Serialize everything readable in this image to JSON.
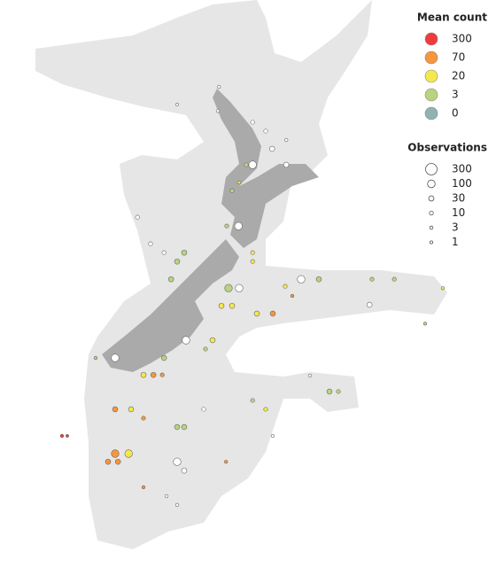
{
  "map": {
    "legend_color": {
      "title": "Mean count",
      "items": [
        {
          "value": 300,
          "color": "#f03b3b"
        },
        {
          "value": 70,
          "color": "#f7963c"
        },
        {
          "value": 20,
          "color": "#f5e84b"
        },
        {
          "value": 3,
          "color": "#b8d47e"
        },
        {
          "value": 0,
          "color": "#8fb3b3"
        }
      ]
    },
    "legend_size": {
      "title": "Observations",
      "items": [
        300,
        100,
        30,
        10,
        3,
        1
      ]
    },
    "points": [
      {
        "lon": 171.18,
        "lat": -36.45,
        "mean": 0,
        "obs": 3
      },
      {
        "lon": 170.0,
        "lat": -36.95,
        "mean": 0,
        "obs": 1
      },
      {
        "lon": 171.15,
        "lat": -37.13,
        "mean": 0,
        "obs": 3
      },
      {
        "lon": 172.13,
        "lat": -37.45,
        "mean": 0,
        "obs": 10
      },
      {
        "lon": 172.5,
        "lat": -37.7,
        "mean": 0,
        "obs": 10
      },
      {
        "lon": 173.08,
        "lat": -37.95,
        "mean": 0,
        "obs": 3
      },
      {
        "lon": 172.68,
        "lat": -38.2,
        "mean": 0,
        "obs": 30
      },
      {
        "lon": 172.13,
        "lat": -38.65,
        "mean": 0,
        "obs": 100
      },
      {
        "lon": 173.08,
        "lat": -38.65,
        "mean": 0,
        "obs": 30
      },
      {
        "lon": 171.95,
        "lat": -38.65,
        "mean": 3,
        "obs": 10
      },
      {
        "lon": 171.55,
        "lat": -39.38,
        "mean": 3,
        "obs": 10
      },
      {
        "lon": 171.75,
        "lat": -39.15,
        "mean": 20,
        "obs": 3
      },
      {
        "lon": 171.73,
        "lat": -40.38,
        "mean": 0,
        "obs": 100
      },
      {
        "lon": 171.4,
        "lat": -40.38,
        "mean": 3,
        "obs": 10
      },
      {
        "lon": 170.2,
        "lat": -41.13,
        "mean": 3,
        "obs": 30
      },
      {
        "lon": 170.0,
        "lat": -41.38,
        "mean": 3,
        "obs": 30
      },
      {
        "lon": 169.83,
        "lat": -41.88,
        "mean": 3,
        "obs": 30
      },
      {
        "lon": 169.63,
        "lat": -41.13,
        "mean": 0,
        "obs": 10
      },
      {
        "lon": 169.25,
        "lat": -40.88,
        "mean": 0,
        "obs": 10
      },
      {
        "lon": 168.88,
        "lat": -40.13,
        "mean": 0,
        "obs": 10
      },
      {
        "lon": 172.13,
        "lat": -41.13,
        "mean": 20,
        "obs": 10
      },
      {
        "lon": 172.13,
        "lat": -41.38,
        "mean": 20,
        "obs": 10
      },
      {
        "lon": 171.45,
        "lat": -42.13,
        "mean": 3,
        "obs": 100
      },
      {
        "lon": 171.75,
        "lat": -42.13,
        "mean": 0,
        "obs": 100
      },
      {
        "lon": 173.5,
        "lat": -41.88,
        "mean": 0,
        "obs": 100
      },
      {
        "lon": 174.0,
        "lat": -41.88,
        "mean": 3,
        "obs": 30
      },
      {
        "lon": 175.5,
        "lat": -41.88,
        "mean": 3,
        "obs": 10
      },
      {
        "lon": 176.13,
        "lat": -41.88,
        "mean": 3,
        "obs": 10
      },
      {
        "lon": 171.25,
        "lat": -42.63,
        "mean": 20,
        "obs": 30
      },
      {
        "lon": 171.55,
        "lat": -42.63,
        "mean": 20,
        "obs": 30
      },
      {
        "lon": 172.7,
        "lat": -42.85,
        "mean": 70,
        "obs": 30
      },
      {
        "lon": 172.25,
        "lat": -42.85,
        "mean": 20,
        "obs": 30
      },
      {
        "lon": 173.25,
        "lat": -42.35,
        "mean": 70,
        "obs": 3
      },
      {
        "lon": 175.43,
        "lat": -42.6,
        "mean": 0,
        "obs": 30
      },
      {
        "lon": 177.0,
        "lat": -43.13,
        "mean": 3,
        "obs": 3
      },
      {
        "lon": 170.25,
        "lat": -43.6,
        "mean": 0,
        "obs": 100
      },
      {
        "lon": 171.0,
        "lat": -43.6,
        "mean": 20,
        "obs": 30
      },
      {
        "lon": 170.8,
        "lat": -43.85,
        "mean": 3,
        "obs": 10
      },
      {
        "lon": 168.25,
        "lat": -44.1,
        "mean": 0,
        "obs": 100
      },
      {
        "lon": 167.7,
        "lat": -44.1,
        "mean": 3,
        "obs": 3
      },
      {
        "lon": 169.63,
        "lat": -44.1,
        "mean": 3,
        "obs": 30
      },
      {
        "lon": 169.05,
        "lat": -44.58,
        "mean": 20,
        "obs": 30
      },
      {
        "lon": 169.33,
        "lat": -44.58,
        "mean": 70,
        "obs": 30
      },
      {
        "lon": 169.58,
        "lat": -44.58,
        "mean": 70,
        "obs": 10
      },
      {
        "lon": 174.3,
        "lat": -45.05,
        "mean": 3,
        "obs": 30
      },
      {
        "lon": 174.55,
        "lat": -45.05,
        "mean": 3,
        "obs": 10
      },
      {
        "lon": 173.75,
        "lat": -44.6,
        "mean": 0,
        "obs": 3
      },
      {
        "lon": 168.25,
        "lat": -45.55,
        "mean": 70,
        "obs": 30
      },
      {
        "lon": 168.7,
        "lat": -45.55,
        "mean": 20,
        "obs": 30
      },
      {
        "lon": 169.05,
        "lat": -45.8,
        "mean": 70,
        "obs": 10
      },
      {
        "lon": 170.0,
        "lat": -46.05,
        "mean": 3,
        "obs": 30
      },
      {
        "lon": 170.2,
        "lat": -46.05,
        "mean": 3,
        "obs": 30
      },
      {
        "lon": 170.75,
        "lat": -45.55,
        "mean": 0,
        "obs": 10
      },
      {
        "lon": 172.13,
        "lat": -45.3,
        "mean": 3,
        "obs": 10
      },
      {
        "lon": 172.5,
        "lat": -45.55,
        "mean": 20,
        "obs": 10
      },
      {
        "lon": 172.7,
        "lat": -46.3,
        "mean": 0,
        "obs": 3
      },
      {
        "lon": 166.75,
        "lat": -46.3,
        "mean": 300,
        "obs": 3
      },
      {
        "lon": 166.9,
        "lat": -46.3,
        "mean": 300,
        "obs": 1
      },
      {
        "lon": 168.25,
        "lat": -46.8,
        "mean": 70,
        "obs": 100
      },
      {
        "lon": 168.63,
        "lat": -46.8,
        "mean": 20,
        "obs": 100
      },
      {
        "lon": 168.05,
        "lat": -47.03,
        "mean": 70,
        "obs": 30
      },
      {
        "lon": 168.33,
        "lat": -47.03,
        "mean": 70,
        "obs": 30
      },
      {
        "lon": 170.0,
        "lat": -47.03,
        "mean": 0,
        "obs": 100
      },
      {
        "lon": 170.2,
        "lat": -47.28,
        "mean": 0,
        "obs": 30
      },
      {
        "lon": 169.05,
        "lat": -47.75,
        "mean": 70,
        "obs": 3
      },
      {
        "lon": 169.7,
        "lat": -48.0,
        "mean": 0,
        "obs": 3
      },
      {
        "lon": 170.0,
        "lat": -48.25,
        "mean": 0,
        "obs": 3
      },
      {
        "lon": 171.38,
        "lat": -47.03,
        "mean": 70,
        "obs": 3
      },
      {
        "lon": 173.05,
        "lat": -42.08,
        "mean": 20,
        "obs": 10
      },
      {
        "lon": 177.5,
        "lat": -42.13,
        "mean": 20,
        "obs": 3
      }
    ]
  }
}
